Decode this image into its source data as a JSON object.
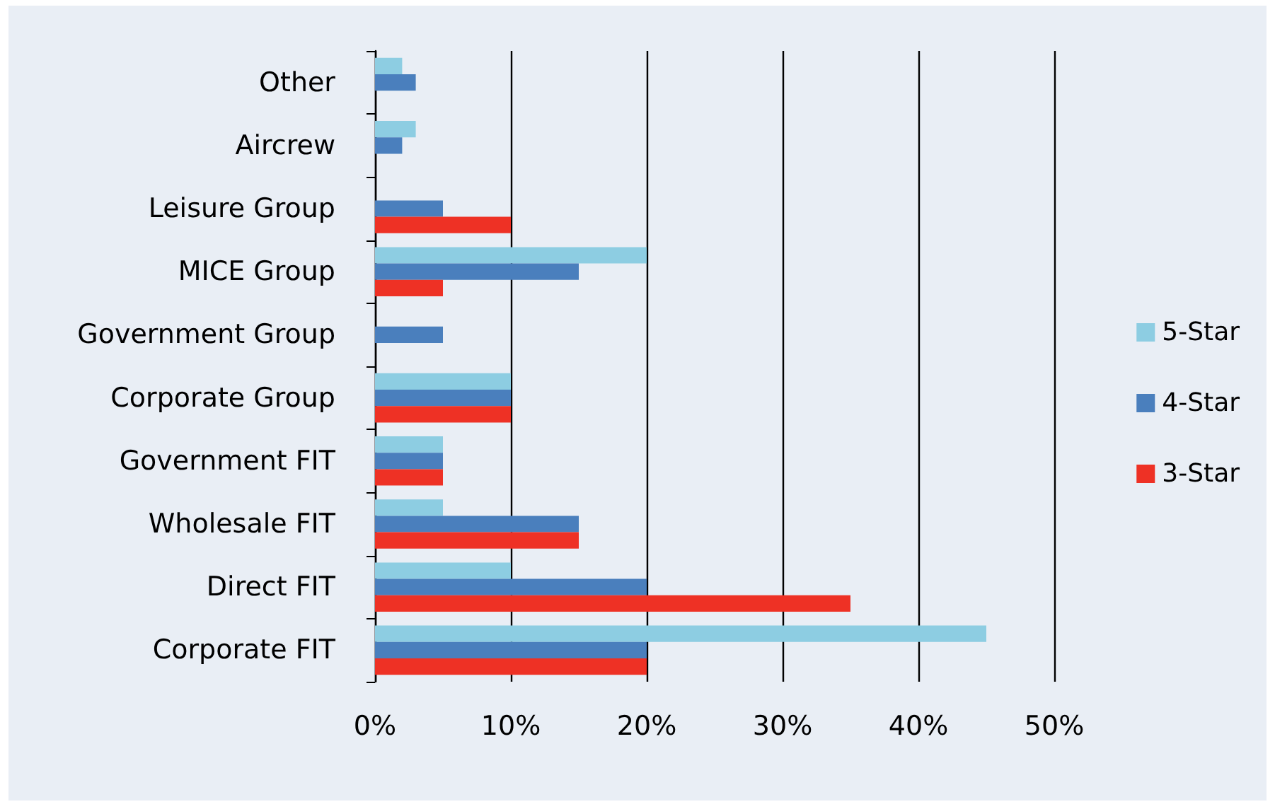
{
  "chart_data": {
    "type": "bar",
    "orientation": "horizontal",
    "categories": [
      "Other",
      "Aircrew",
      "Leisure Group",
      "MICE Group",
      "Government Group",
      "Corporate Group",
      "Government FIT",
      "Wholesale FIT",
      "Direct FIT",
      "Corporate FIT"
    ],
    "series": [
      {
        "name": "5-Star",
        "color": "#8dcde2",
        "values": [
          2,
          3,
          null,
          20,
          null,
          10,
          5,
          5,
          10,
          45
        ]
      },
      {
        "name": "4-Star",
        "color": "#4a7fbd",
        "values": [
          3,
          2,
          5,
          15,
          5,
          10,
          5,
          15,
          20,
          20
        ]
      },
      {
        "name": "3-Star",
        "color": "#ee3125",
        "values": [
          null,
          null,
          10,
          5,
          null,
          10,
          5,
          15,
          35,
          20
        ]
      }
    ],
    "xlim": [
      0,
      50
    ],
    "xticks": [
      {
        "value": 0,
        "label": "0%"
      },
      {
        "value": 10,
        "label": "10%"
      },
      {
        "value": 20,
        "label": "20%"
      },
      {
        "value": 30,
        "label": "30%"
      },
      {
        "value": 40,
        "label": "40%"
      },
      {
        "value": 50,
        "label": "50%"
      }
    ],
    "grid": "x",
    "legend": "right"
  }
}
